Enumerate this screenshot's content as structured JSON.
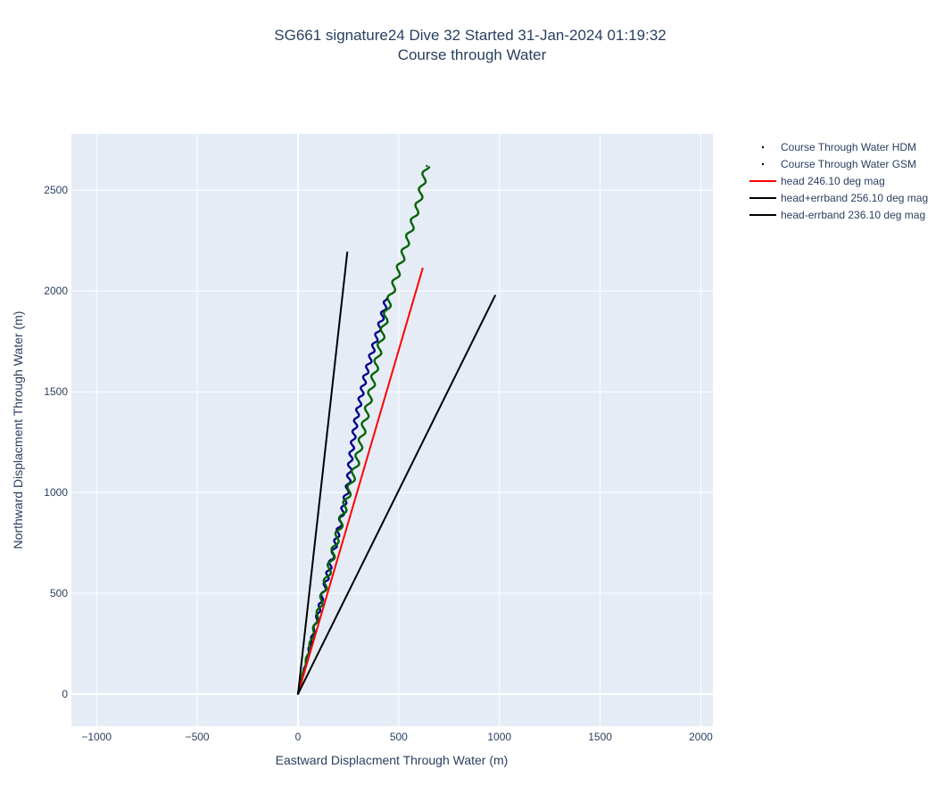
{
  "chart_data": {
    "type": "scatter",
    "title": "SG661 signature24 Dive 32 Started 31-Jan-2024 01:19:32",
    "subtitle": "Course through Water",
    "xlabel": "Eastward Displacment Through Water (m)",
    "ylabel": "Northward Displacment Through Water (m)",
    "xlim": [
      -1125,
      2060
    ],
    "ylim": [
      -160,
      2780
    ],
    "xticks": [
      -1000,
      -500,
      0,
      500,
      1000,
      1500,
      2000
    ],
    "xtick_labels": [
      "−1000",
      "−500",
      "0",
      "500",
      "1000",
      "1500",
      "2000"
    ],
    "yticks": [
      0,
      500,
      1000,
      1500,
      2000,
      2500
    ],
    "ytick_labels": [
      "0",
      "500",
      "1000",
      "1500",
      "2000",
      "2500"
    ],
    "grid": true,
    "legend_position": "top-right outside",
    "series": [
      {
        "name": "Course Through Water HDM",
        "mode": "markers",
        "color": "#00008b",
        "points": [
          [
            0,
            0
          ],
          [
            30,
            120
          ],
          [
            60,
            240
          ],
          [
            90,
            360
          ],
          [
            120,
            480
          ],
          [
            150,
            600
          ],
          [
            180,
            720
          ],
          [
            210,
            850
          ],
          [
            235,
            970
          ],
          [
            250,
            1040
          ],
          [
            255,
            1100
          ],
          [
            260,
            1160
          ],
          [
            270,
            1230
          ],
          [
            280,
            1300
          ],
          [
            290,
            1370
          ],
          [
            305,
            1440
          ],
          [
            320,
            1510
          ],
          [
            335,
            1580
          ],
          [
            355,
            1650
          ],
          [
            375,
            1720
          ],
          [
            395,
            1790
          ],
          [
            415,
            1860
          ],
          [
            440,
            1960
          ]
        ],
        "wiggle_amplitude": 10,
        "wiggle_period": 55
      },
      {
        "name": "Course Through Water GSM",
        "mode": "markers",
        "color": "#006400",
        "points": [
          [
            0,
            0
          ],
          [
            30,
            120
          ],
          [
            60,
            240
          ],
          [
            90,
            360
          ],
          [
            120,
            480
          ],
          [
            150,
            600
          ],
          [
            180,
            720
          ],
          [
            210,
            840
          ],
          [
            240,
            960
          ],
          [
            265,
            1050
          ],
          [
            290,
            1140
          ],
          [
            310,
            1240
          ],
          [
            330,
            1340
          ],
          [
            350,
            1440
          ],
          [
            370,
            1540
          ],
          [
            390,
            1640
          ],
          [
            410,
            1740
          ],
          [
            430,
            1840
          ],
          [
            450,
            1940
          ],
          [
            480,
            2040
          ],
          [
            510,
            2140
          ],
          [
            540,
            2240
          ],
          [
            570,
            2340
          ],
          [
            600,
            2440
          ],
          [
            620,
            2540
          ],
          [
            640,
            2620
          ]
        ],
        "wiggle_amplitude": 13,
        "wiggle_period": 80
      },
      {
        "name": "head 246.10 deg mag",
        "mode": "lines",
        "color": "#ff0000",
        "points": [
          [
            0,
            0
          ],
          [
            620,
            2115
          ]
        ]
      },
      {
        "name": "head+errband 256.10 deg mag",
        "mode": "lines",
        "color": "#000000",
        "points": [
          [
            0,
            0
          ],
          [
            245,
            2195
          ]
        ]
      },
      {
        "name": "head-errband 236.10 deg mag",
        "mode": "lines",
        "color": "#000000",
        "points": [
          [
            0,
            0
          ],
          [
            980,
            1980
          ]
        ]
      }
    ]
  }
}
